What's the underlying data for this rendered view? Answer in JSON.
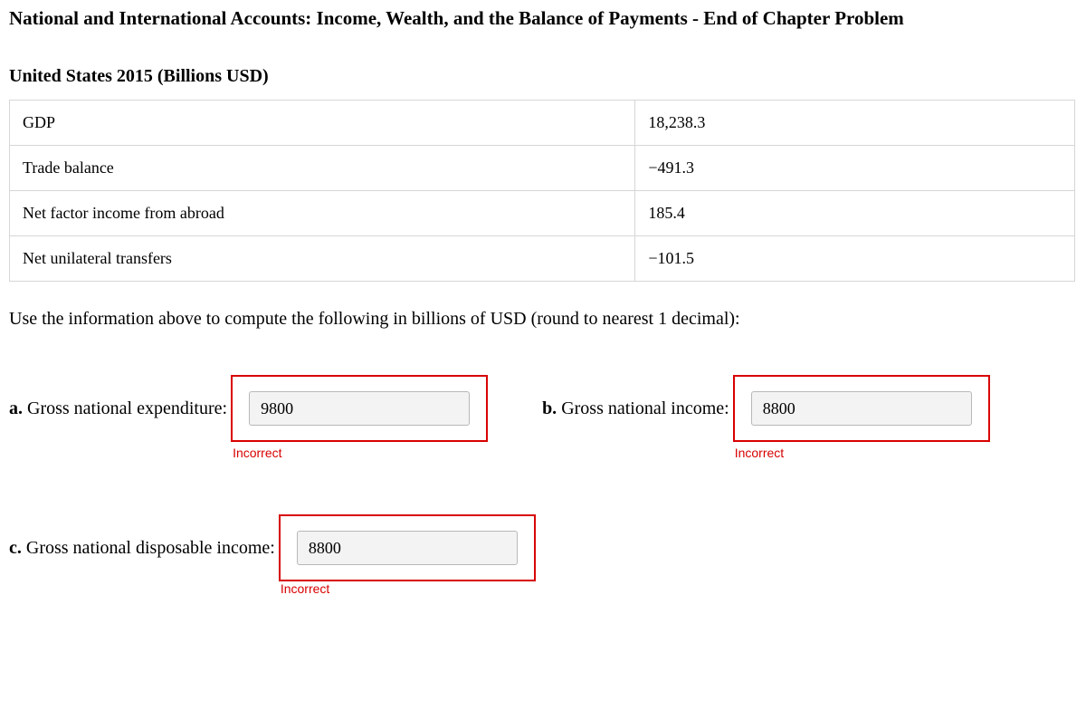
{
  "title": "National and International Accounts: Income, Wealth, and the Balance of Payments - End of Chapter Problem",
  "subtitle": "United States 2015 (Billions USD)",
  "table": {
    "rows": [
      {
        "label": "GDP",
        "value": "18,238.3"
      },
      {
        "label": "Trade balance",
        "value": "−491.3"
      },
      {
        "label": "Net factor income from abroad",
        "value": "185.4"
      },
      {
        "label": "Net unilateral transfers",
        "value": "−101.5"
      }
    ]
  },
  "instruction": "Use the information above to compute the following in billions of USD (round to nearest 1 decimal):",
  "answers": {
    "a": {
      "prefix": "a.",
      "label": " Gross national expenditure:",
      "value": "9800",
      "feedback": "Incorrect"
    },
    "b": {
      "prefix": "b.",
      "label": " Gross national income:",
      "value": "8800",
      "feedback": "Incorrect"
    },
    "c": {
      "prefix": "c.",
      "label": " Gross national disposable income:",
      "value": "8800",
      "feedback": "Incorrect"
    }
  },
  "colors": {
    "error": "#d80000",
    "border": "#d6d6d6",
    "input_bg": "#f3f3f3"
  }
}
